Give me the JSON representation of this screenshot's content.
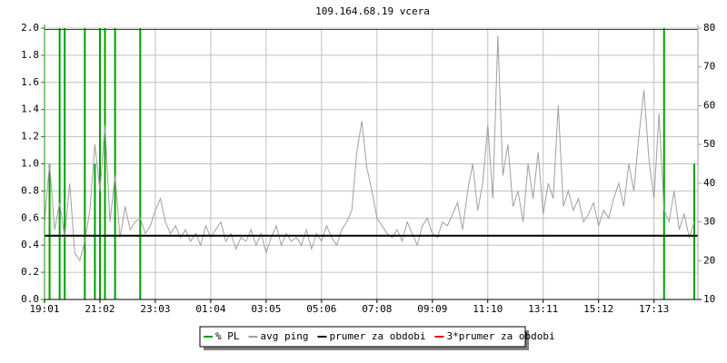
{
  "chart_data": {
    "type": "line",
    "title": "109.164.68.19 vcera",
    "categories": [
      "19:01",
      null,
      null,
      null,
      null,
      null,
      null,
      null,
      null,
      null,
      null,
      "21:02",
      null,
      null,
      null,
      null,
      null,
      null,
      null,
      null,
      null,
      null,
      "23:03",
      null,
      null,
      null,
      null,
      null,
      null,
      null,
      null,
      null,
      null,
      "01:04",
      null,
      null,
      null,
      null,
      null,
      null,
      null,
      null,
      null,
      null,
      "03:05",
      null,
      null,
      null,
      null,
      null,
      null,
      null,
      null,
      null,
      null,
      "05:06",
      null,
      null,
      null,
      null,
      null,
      null,
      null,
      null,
      null,
      null,
      "07:08",
      null,
      null,
      null,
      null,
      null,
      null,
      null,
      null,
      null,
      null,
      "09:09",
      null,
      null,
      null,
      null,
      null,
      null,
      null,
      null,
      null,
      null,
      "11:10",
      null,
      null,
      null,
      null,
      null,
      null,
      null,
      null,
      null,
      null,
      "13:11",
      null,
      null,
      null,
      null,
      null,
      null,
      null,
      null,
      null,
      null,
      "15:12",
      null,
      null,
      null,
      null,
      null,
      null,
      null,
      null,
      null,
      null,
      "17:13",
      null,
      null,
      null,
      null,
      null,
      null,
      null,
      null
    ],
    "series": [
      {
        "name": "% PL",
        "color": "#00a000",
        "axis": "y",
        "style": "impulse",
        "values": [
          0,
          1,
          0,
          2,
          2,
          0,
          0,
          0,
          2,
          0,
          1,
          2,
          2,
          0,
          2,
          0,
          0,
          0,
          0,
          2,
          0,
          0,
          0,
          0,
          0,
          0,
          0,
          0,
          0,
          0,
          0,
          0,
          0,
          0,
          0,
          0,
          0,
          0,
          0,
          0,
          0,
          0,
          0,
          0,
          0,
          0,
          0,
          0,
          0,
          0,
          0,
          0,
          0,
          0,
          0,
          0,
          0,
          0,
          0,
          0,
          0,
          0,
          0,
          0,
          0,
          0,
          0,
          0,
          0,
          0,
          0,
          0,
          0,
          0,
          0,
          0,
          0,
          0,
          0,
          0,
          0,
          0,
          0,
          0,
          0,
          0,
          0,
          0,
          0,
          0,
          0,
          0,
          0,
          0,
          0,
          0,
          0,
          0,
          0,
          0,
          0,
          0,
          0,
          0,
          0,
          0,
          0,
          0,
          0,
          0,
          0,
          0,
          0,
          0,
          0,
          0,
          0,
          0,
          0,
          0,
          0,
          0,
          0,
          2,
          0,
          0,
          0,
          0,
          0,
          1
        ]
      },
      {
        "name": "avg ping",
        "color": "#a0a0a0",
        "axis": "y2",
        "style": "line",
        "values": [
          30,
          45,
          28,
          35,
          26,
          40,
          22,
          20,
          25,
          33,
          50,
          38,
          55,
          30,
          42,
          26,
          34,
          28,
          30,
          31,
          27,
          29,
          33,
          36,
          30,
          27,
          29,
          26,
          28,
          25,
          27,
          24,
          29,
          26,
          28,
          30,
          25,
          27,
          23,
          26,
          25,
          28,
          24,
          27,
          22,
          26,
          29,
          24,
          27,
          25,
          26,
          24,
          28,
          23,
          27,
          25,
          29,
          26,
          24,
          28,
          30,
          33,
          48,
          56,
          44,
          38,
          31,
          29,
          27,
          26,
          28,
          25,
          30,
          27,
          24,
          29,
          31,
          27,
          26,
          30,
          29,
          32,
          35,
          28,
          38,
          45,
          33,
          40,
          55,
          36,
          78,
          42,
          50,
          34,
          38,
          30,
          45,
          36,
          48,
          32,
          40,
          36,
          60,
          34,
          38,
          33,
          36,
          30,
          32,
          35,
          29,
          33,
          31,
          36,
          40,
          34,
          45,
          38,
          52,
          64,
          46,
          36,
          58,
          33,
          30,
          38,
          28,
          32,
          26,
          30
        ]
      },
      {
        "name": "prumer za obdobi",
        "color": "#000000",
        "axis": "y",
        "style": "level",
        "level": 0.47
      },
      {
        "name": "3*prumer za obdobi",
        "color": "#e00000",
        "axis": "y",
        "style": "level",
        "level": 1.99
      }
    ],
    "ylim": [
      0,
      2
    ],
    "yticks": [
      {
        "value": 0,
        "label": "0.0"
      },
      0.2,
      0.4,
      0.6,
      0.8,
      {
        "value": 1,
        "label": "1.0"
      },
      1.2,
      1.4,
      1.6,
      1.8,
      {
        "value": 2,
        "label": "2.0"
      }
    ],
    "y2lim": [
      10,
      80
    ],
    "y2ticks": [
      10,
      20,
      30,
      40,
      50,
      60,
      70,
      80
    ],
    "ytick_color": "#00a000",
    "y2tick_color": "#a0a0a0",
    "grid": true,
    "legend": "bottom"
  }
}
